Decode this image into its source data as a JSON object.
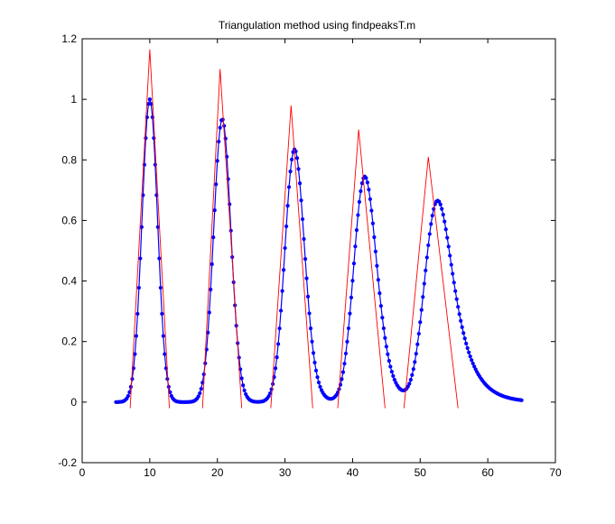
{
  "figure": {
    "background": "#ffffff"
  },
  "chart_data": {
    "type": "line",
    "title": "Triangulation method using findpeaksT.m",
    "xlabel": "",
    "ylabel": "",
    "xlim": [
      0,
      70
    ],
    "ylim": [
      -0.2,
      1.2
    ],
    "xticks": [
      0,
      10,
      20,
      30,
      40,
      50,
      60,
      70
    ],
    "yticks": [
      -0.2,
      0,
      0.2,
      0.4,
      0.6,
      0.8,
      1,
      1.2
    ],
    "xtick_labels": [
      "0",
      "10",
      "20",
      "30",
      "40",
      "50",
      "60",
      "70"
    ],
    "ytick_labels": [
      "-0.2",
      "0",
      "0.2",
      "0.4",
      "0.6",
      "0.8",
      "1",
      "1.2"
    ],
    "grid": false,
    "legend": "none",
    "colors": {
      "data": "#0000ff",
      "fit": "#ff0000",
      "axes": "#000000"
    },
    "data_series": {
      "style": "line-with-dot-markers",
      "x_range": [
        5,
        65
      ],
      "sample_step": 0.2,
      "peaks": [
        {
          "position": 10.0,
          "height": 1.0,
          "width": 2.7,
          "tail": 0.0
        },
        {
          "position": 20.4,
          "height": 0.935,
          "width": 2.9,
          "tail": 0.35
        },
        {
          "position": 30.8,
          "height": 0.835,
          "width": 3.1,
          "tail": 0.75
        },
        {
          "position": 40.9,
          "height": 0.745,
          "width": 3.4,
          "tail": 1.25
        },
        {
          "position": 51.2,
          "height": 0.665,
          "width": 3.7,
          "tail": 2.4
        }
      ]
    },
    "triangle_fits": [
      {
        "left": [
          7.1,
          -0.02
        ],
        "apex": [
          10.0,
          1.165
        ],
        "right": [
          12.9,
          -0.02
        ]
      },
      {
        "left": [
          17.8,
          -0.02
        ],
        "apex": [
          20.4,
          1.1
        ],
        "right": [
          23.6,
          -0.02
        ]
      },
      {
        "left": [
          27.9,
          -0.02
        ],
        "apex": [
          30.9,
          0.98
        ],
        "right": [
          34.1,
          -0.02
        ]
      },
      {
        "left": [
          37.8,
          -0.02
        ],
        "apex": [
          40.9,
          0.9
        ],
        "right": [
          44.8,
          -0.02
        ]
      },
      {
        "left": [
          47.6,
          -0.02
        ],
        "apex": [
          51.2,
          0.81
        ],
        "right": [
          55.6,
          -0.02
        ]
      }
    ]
  }
}
